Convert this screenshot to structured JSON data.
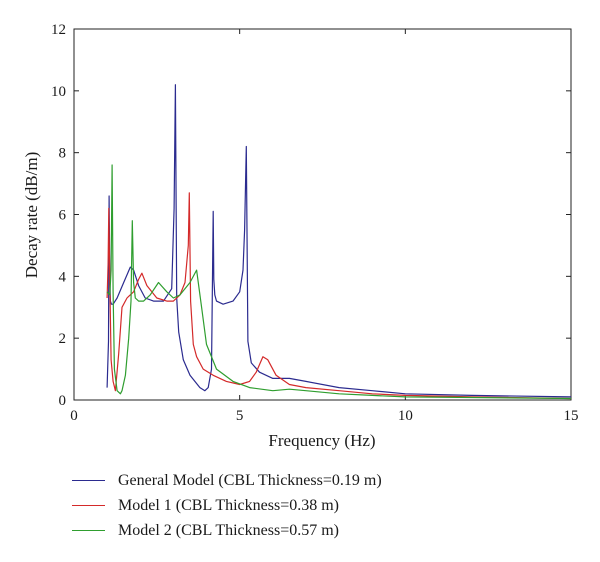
{
  "chart_data": {
    "type": "line",
    "title": "",
    "xlabel": "Frequency (Hz)",
    "ylabel": "Decay rate (dB/m)",
    "xlim": [
      0,
      15
    ],
    "ylim": [
      0,
      12
    ],
    "x_ticks": [
      0,
      5,
      10,
      15
    ],
    "y_ticks": [
      0,
      2,
      4,
      6,
      8,
      10,
      12
    ],
    "x_tick_labels": [
      "0",
      "5",
      "10",
      "15"
    ],
    "y_tick_labels": [
      "0",
      "2",
      "4",
      "6",
      "8",
      "10",
      "12"
    ],
    "grid": false,
    "legend_position": "below-left",
    "series": [
      {
        "name": "General Model (CBL Thickness=0.19 m)",
        "color": "#2b2b8f",
        "x": [
          1.0,
          1.04,
          1.06,
          1.08,
          1.1,
          1.13,
          1.18,
          1.3,
          1.5,
          1.7,
          1.8,
          1.95,
          2.15,
          2.4,
          2.7,
          2.95,
          3.02,
          3.06,
          3.1,
          3.16,
          3.3,
          3.5,
          3.8,
          3.95,
          4.05,
          4.15,
          4.2,
          4.22,
          4.25,
          4.3,
          4.5,
          4.8,
          5.0,
          5.1,
          5.15,
          5.2,
          5.25,
          5.35,
          5.6,
          6.0,
          6.5,
          7.0,
          8.0,
          9.0,
          10.0,
          12.0,
          15.0
        ],
        "y": [
          0.4,
          1.9,
          6.6,
          3.9,
          3.2,
          3.1,
          3.1,
          3.3,
          3.8,
          4.3,
          4.2,
          3.7,
          3.3,
          3.2,
          3.2,
          3.6,
          6.2,
          10.2,
          3.3,
          2.2,
          1.3,
          0.8,
          0.4,
          0.3,
          0.4,
          1.0,
          6.1,
          3.9,
          3.4,
          3.2,
          3.1,
          3.2,
          3.5,
          4.2,
          5.5,
          8.2,
          1.9,
          1.2,
          0.9,
          0.7,
          0.7,
          0.6,
          0.4,
          0.3,
          0.2,
          0.15,
          0.1
        ]
      },
      {
        "name": "Model 1 (CBL Thickness=0.38 m)",
        "color": "#d42a2a",
        "x": [
          1.0,
          1.03,
          1.05,
          1.08,
          1.12,
          1.18,
          1.25,
          1.35,
          1.45,
          1.6,
          1.8,
          1.95,
          2.05,
          2.2,
          2.5,
          2.8,
          3.0,
          3.2,
          3.35,
          3.45,
          3.48,
          3.52,
          3.6,
          3.7,
          3.9,
          4.2,
          4.6,
          5.0,
          5.3,
          5.5,
          5.7,
          5.85,
          6.1,
          6.5,
          7.0,
          8.0,
          9.0,
          10.0,
          12.0,
          15.0
        ],
        "y": [
          3.3,
          4.4,
          6.2,
          3.8,
          1.3,
          0.6,
          0.3,
          1.5,
          3.0,
          3.3,
          3.5,
          3.9,
          4.1,
          3.7,
          3.3,
          3.2,
          3.2,
          3.4,
          3.8,
          5.0,
          6.7,
          3.2,
          1.8,
          1.4,
          1.0,
          0.8,
          0.6,
          0.5,
          0.6,
          0.9,
          1.4,
          1.3,
          0.8,
          0.5,
          0.4,
          0.3,
          0.2,
          0.15,
          0.1,
          0.05
        ]
      },
      {
        "name": "Model 2 (CBL Thickness=0.57 m)",
        "color": "#2f9e2f",
        "x": [
          1.0,
          1.08,
          1.12,
          1.15,
          1.18,
          1.22,
          1.3,
          1.4,
          1.45,
          1.55,
          1.65,
          1.72,
          1.76,
          1.8,
          1.85,
          1.95,
          2.1,
          2.3,
          2.55,
          2.8,
          3.0,
          3.2,
          3.5,
          3.7,
          3.85,
          4.0,
          4.3,
          4.8,
          5.3,
          6.0,
          6.5,
          7.0,
          8.0,
          9.0,
          10.0,
          12.0,
          15.0
        ],
        "y": [
          3.5,
          3.4,
          4.2,
          7.6,
          3.5,
          1.0,
          0.3,
          0.2,
          0.3,
          0.8,
          2.0,
          3.2,
          5.8,
          3.8,
          3.3,
          3.2,
          3.2,
          3.4,
          3.8,
          3.5,
          3.3,
          3.4,
          3.8,
          4.2,
          3.0,
          1.8,
          1.0,
          0.6,
          0.4,
          0.3,
          0.35,
          0.3,
          0.2,
          0.15,
          0.1,
          0.08,
          0.05
        ]
      }
    ]
  }
}
